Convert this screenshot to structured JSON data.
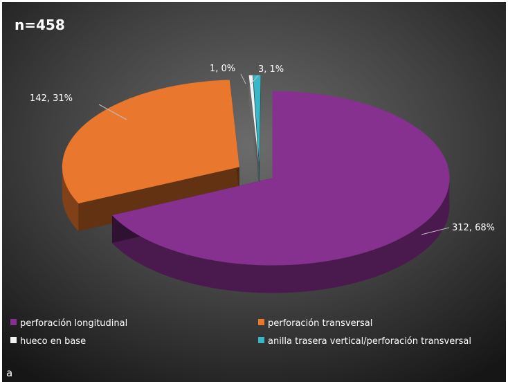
{
  "panel_label": "a",
  "chart_data": {
    "type": "pie",
    "title": "n=458",
    "labels": [
      "perforación longitudinal",
      "perforación transversal",
      "hueco en base",
      "anilla trasera vertical/perforación transversal"
    ],
    "values": [
      312,
      142,
      1,
      3
    ],
    "percents": [
      "68%",
      "31%",
      "0%",
      "1%"
    ],
    "data_labels": [
      "312, 68%",
      "142, 31%",
      "1, 0%",
      "3, 1%"
    ],
    "colors": [
      "#86308f",
      "#e9772d",
      "#f2f2f2",
      "#36b8c8"
    ],
    "three_d": true,
    "exploded": true,
    "legend_position": "bottom"
  }
}
